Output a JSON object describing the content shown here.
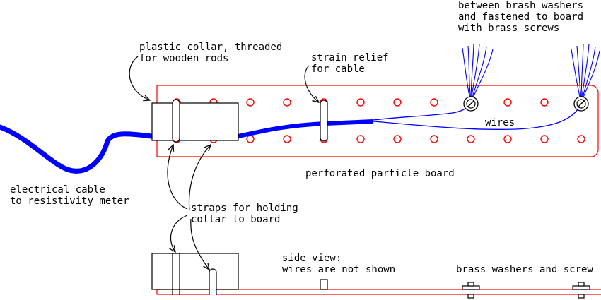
{
  "labels": {
    "collar_line1": "plastic collar, threaded",
    "collar_line2": "for wooden rods",
    "strain_line1": "strain relief",
    "strain_line2": "for cable",
    "top_right_line1": "between brash washers",
    "top_right_line2": "and fastened to board",
    "top_right_line3": "with brass screws",
    "wires": "wires",
    "board": "perforated particle board",
    "cable_line1": "electrical cable",
    "cable_line2": "to resistivity meter",
    "straps_line1": "straps for holding",
    "straps_line2": "collar to board",
    "side_line1": "side view:",
    "side_line2": "wires are not shown",
    "washers": "brass washers and screw"
  },
  "colors": {
    "board_outline": "#ff0000",
    "holes": "#ff0000",
    "cable": "#0000ff",
    "wires": "#0000ff",
    "ink": "#000000"
  }
}
